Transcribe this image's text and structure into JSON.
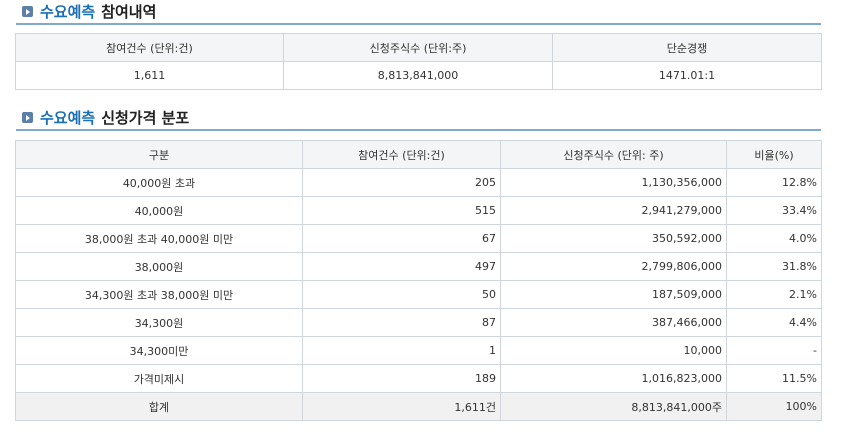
{
  "section1": {
    "title_accent": "수요예측",
    "title_rest": "참여내역"
  },
  "summary_table": {
    "headers": [
      "참여건수 (단위:건)",
      "신청주식수 (단위:주)",
      "단순경쟁"
    ],
    "values": [
      "1,611",
      "8,813,841,000",
      "1471.01:1"
    ]
  },
  "section2": {
    "title_accent": "수요예측",
    "title_rest": "신청가격 분포"
  },
  "distribution_table": {
    "headers": [
      "구분",
      "참여건수 (단위:건)",
      "신청주식수 (단위: 주)",
      "비율(%)"
    ],
    "rows": [
      [
        "40,000원 초과",
        "205",
        "1,130,356,000",
        "12.8%"
      ],
      [
        "40,000원",
        "515",
        "2,941,279,000",
        "33.4%"
      ],
      [
        "38,000원 초과 40,000원 미만",
        "67",
        "350,592,000",
        "4.0%"
      ],
      [
        "38,000원",
        "497",
        "2,799,806,000",
        "31.8%"
      ],
      [
        "34,300원 초과 38,000원 미만",
        "50",
        "187,509,000",
        "2.1%"
      ],
      [
        "34,300원",
        "87",
        "387,466,000",
        "4.4%"
      ],
      [
        "34,300미만",
        "1",
        "10,000",
        "-"
      ],
      [
        "가격미제시",
        "189",
        "1,016,823,000",
        "11.5%"
      ]
    ],
    "total": [
      "합계",
      "1,611건",
      "8,813,841,000주",
      "100%"
    ]
  }
}
